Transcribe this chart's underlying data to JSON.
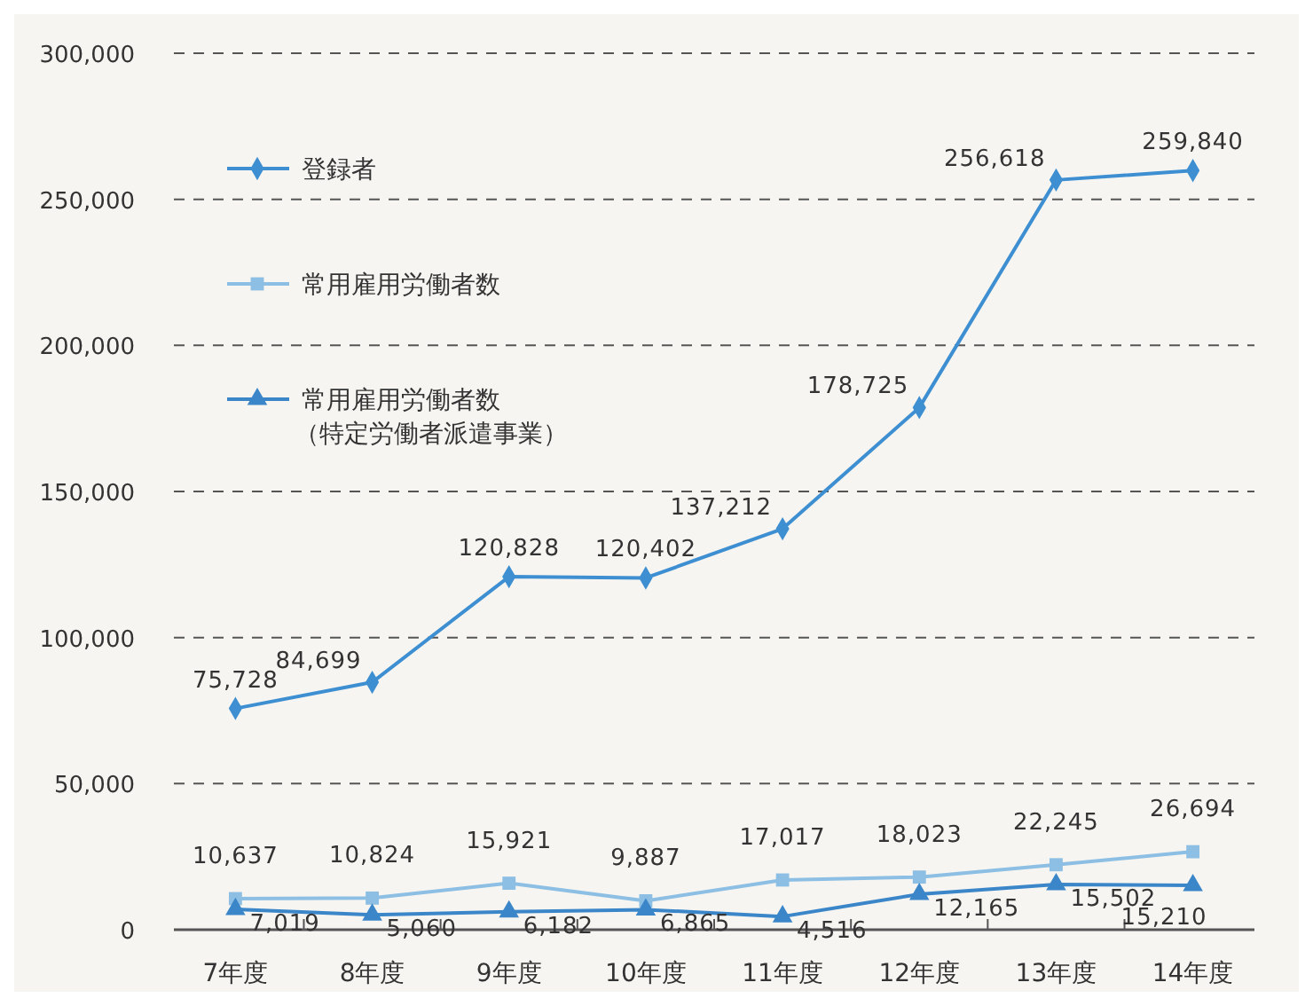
{
  "chart_data": {
    "type": "line",
    "categories": [
      "7年度",
      "8年度",
      "9年度",
      "10年度",
      "11年度",
      "12年度",
      "13年度",
      "14年度"
    ],
    "ylim": [
      0,
      300000
    ],
    "yticks": [
      0,
      {
        "value": 50000,
        "label": "50,000"
      },
      {
        "value": 100000,
        "label": "100,000"
      },
      {
        "value": 150000,
        "label": "150,000"
      },
      {
        "value": 200000,
        "label": "200,000"
      },
      {
        "value": 250000,
        "label": "250,000"
      },
      {
        "value": 300000,
        "label": "300,000"
      }
    ],
    "grid": "y",
    "legend": "top left",
    "series": [
      {
        "name": "登録者",
        "color": "#3d8fd1",
        "marker": "diamond",
        "values": [
          75728,
          84699,
          120828,
          120402,
          137212,
          178725,
          256618,
          259840
        ],
        "value_labels": [
          "75,728",
          "84,699",
          "120,828",
          "120,402",
          "137,212",
          "178,725",
          "256,618",
          "259,840"
        ]
      },
      {
        "name": "常用雇用労働者数",
        "color": "#8cbfe3",
        "marker": "square",
        "values": [
          10637,
          10824,
          15921,
          9887,
          17017,
          18023,
          22245,
          26694
        ],
        "value_labels": [
          "10,637",
          "10,824",
          "15,921",
          "9,887",
          "17,017",
          "18,023",
          "22,245",
          "26,694"
        ]
      },
      {
        "name": "常用雇用労働者数（特定労働者派遣事業）",
        "color": "#3a86c8",
        "marker": "triangle",
        "values": [
          7019,
          5060,
          6182,
          6865,
          4516,
          12165,
          15502,
          15210
        ],
        "value_labels": [
          "7,019",
          "5,060",
          "6,182",
          "6,865",
          "4,516",
          "12,165",
          "15,502",
          "15,210"
        ]
      }
    ]
  }
}
